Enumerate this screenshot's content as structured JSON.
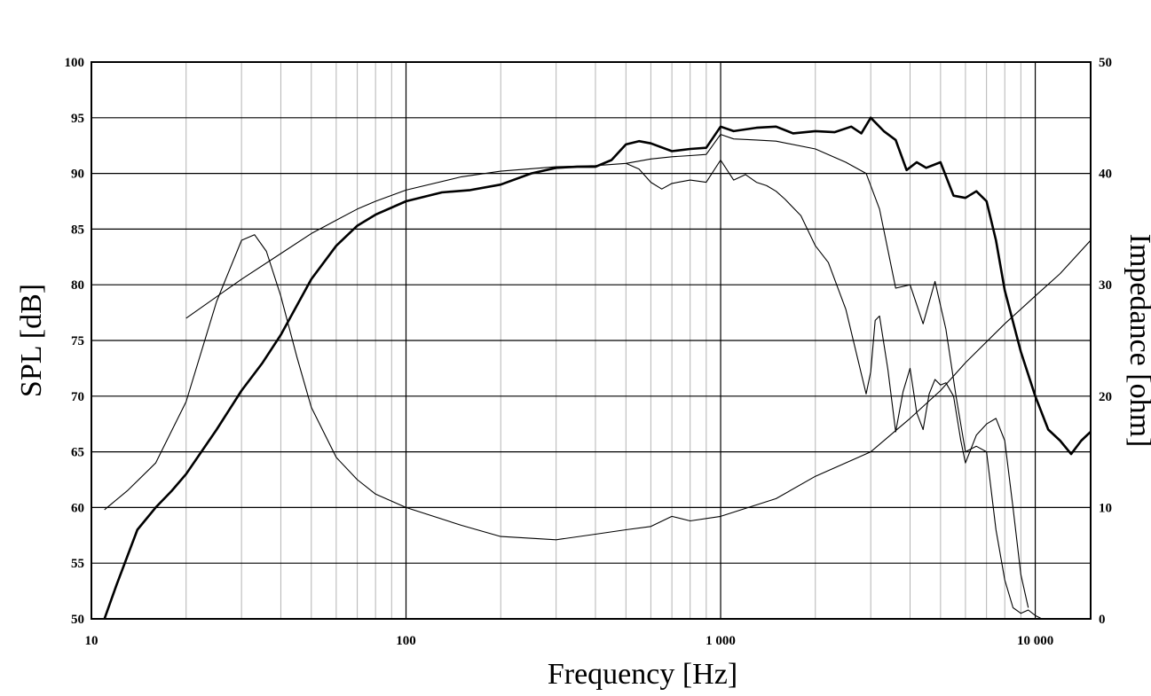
{
  "chart_data": {
    "type": "line",
    "title": "",
    "xlabel": "Frequency [Hz]",
    "ylabel": "SPL [dB]",
    "y2label": "Impedance [ohm]",
    "xscale": "log",
    "xlim": [
      10,
      15000
    ],
    "ylim": [
      50,
      100
    ],
    "y2lim": [
      0,
      50
    ],
    "grid": true,
    "x_ticks": [
      10,
      100,
      1000,
      10000
    ],
    "x_tick_labels": [
      "10",
      "100",
      "1 000",
      "10 000"
    ],
    "y_ticks": [
      50,
      55,
      60,
      65,
      70,
      75,
      80,
      85,
      90,
      95,
      100
    ],
    "y_tick_labels": [
      "50",
      "55",
      "60",
      "65",
      "70",
      "75",
      "80",
      "85",
      "90",
      "95",
      "100"
    ],
    "y2_ticks": [
      0,
      10,
      20,
      30,
      40,
      50
    ],
    "y2_tick_labels": [
      "0",
      "10",
      "20",
      "30",
      "40",
      "50"
    ],
    "series": [
      {
        "axis": "left",
        "style": "thick",
        "x": [
          11,
          12,
          14,
          16,
          18,
          20,
          25,
          30,
          35,
          40,
          50,
          60,
          70,
          80,
          100,
          130,
          160,
          200,
          250,
          300,
          350,
          400,
          450,
          500,
          550,
          600,
          700,
          800,
          900,
          1000,
          1100,
          1300,
          1500,
          1700,
          2000,
          2300,
          2600,
          2800,
          3000,
          3300,
          3600,
          3900,
          4200,
          4500,
          5000,
          5500,
          6000,
          6500,
          7000,
          7500,
          8000,
          9000,
          10000,
          11000,
          12000,
          13000,
          14000,
          15000
        ],
        "y": [
          50,
          53,
          58,
          60,
          61.5,
          63,
          67,
          70.5,
          73,
          75.5,
          80.5,
          83.5,
          85.3,
          86.3,
          87.5,
          88.3,
          88.5,
          89,
          90,
          90.5,
          90.6,
          90.6,
          91.2,
          92.6,
          92.9,
          92.7,
          92.0,
          92.2,
          92.3,
          94.2,
          93.8,
          94.1,
          94.2,
          93.6,
          93.8,
          93.7,
          94.2,
          93.6,
          95.0,
          93.8,
          93.0,
          90.3,
          91.0,
          90.5,
          91.0,
          88.0,
          87.8,
          88.4,
          87.5,
          84,
          79.5,
          74,
          70,
          67,
          66,
          64.8,
          66,
          66.8
        ]
      },
      {
        "axis": "left",
        "style": "thin",
        "x": [
          20,
          30,
          40,
          50,
          60,
          70,
          80,
          100,
          150,
          200,
          300,
          400,
          500,
          600,
          700,
          800,
          900,
          1000,
          1100,
          1300,
          1500,
          2000,
          2500,
          2900,
          3200,
          3600,
          4000,
          4400,
          4800,
          5200,
          5600,
          6000,
          6500,
          7000,
          7500,
          8000,
          8500,
          9000,
          9500,
          10000,
          10500
        ],
        "y": [
          77,
          80.5,
          82.8,
          84.6,
          85.8,
          86.8,
          87.5,
          88.5,
          89.7,
          90.2,
          90.6,
          90.7,
          90.9,
          91.3,
          91.5,
          91.6,
          91.7,
          93.5,
          93.1,
          93.0,
          92.9,
          92.2,
          91.0,
          90.0,
          86.8,
          79.7,
          80,
          76.5,
          80.3,
          76,
          70,
          65,
          65.5,
          65,
          58,
          53.5,
          51,
          50.5,
          50.8,
          50.3,
          50
        ]
      },
      {
        "axis": "left",
        "style": "thin",
        "x": [
          500,
          550,
          600,
          650,
          700,
          800,
          900,
          1000,
          1100,
          1200,
          1300,
          1400,
          1500,
          1600,
          1800,
          2000,
          2200,
          2500,
          2800,
          2900,
          3000,
          3100,
          3200,
          3400,
          3600,
          3800,
          4000,
          4200,
          4400,
          4600,
          4800,
          5000,
          5200,
          5500,
          5800,
          6000,
          6500,
          7000,
          7500,
          8000,
          8500,
          9000,
          9500
        ],
        "y": [
          90.9,
          90.4,
          89.2,
          88.6,
          89.1,
          89.4,
          89.2,
          91.2,
          89.4,
          89.9,
          89.2,
          88.9,
          88.4,
          87.7,
          86.2,
          83.5,
          82.0,
          77.8,
          72.0,
          70.2,
          72.2,
          76.8,
          77.2,
          72.4,
          66.8,
          70.4,
          72.5,
          68.5,
          67.0,
          70.2,
          71.5,
          71.0,
          71.2,
          70.0,
          66.0,
          64.0,
          66.5,
          67.5,
          68.0,
          66.0,
          60.0,
          54.0,
          51.0
        ]
      },
      {
        "axis": "right",
        "style": "thin",
        "x": [
          11,
          13,
          16,
          20,
          25,
          30,
          33,
          36,
          40,
          45,
          50,
          60,
          70,
          80,
          100,
          150,
          200,
          300,
          400,
          500,
          600,
          700,
          800,
          1000,
          1500,
          2000,
          3000,
          4000,
          5000,
          6000,
          8000,
          10000,
          12000,
          15000
        ],
        "y": [
          9.8,
          11.5,
          14,
          19.5,
          28.5,
          34,
          34.5,
          33,
          29,
          23.5,
          19,
          14.5,
          12.5,
          11.2,
          10.0,
          8.4,
          7.4,
          7.1,
          7.6,
          8.0,
          8.3,
          9.2,
          8.8,
          9.2,
          10.8,
          12.8,
          15.0,
          18.0,
          20.5,
          23.0,
          26.5,
          29.0,
          31.0,
          34.0
        ]
      }
    ]
  }
}
